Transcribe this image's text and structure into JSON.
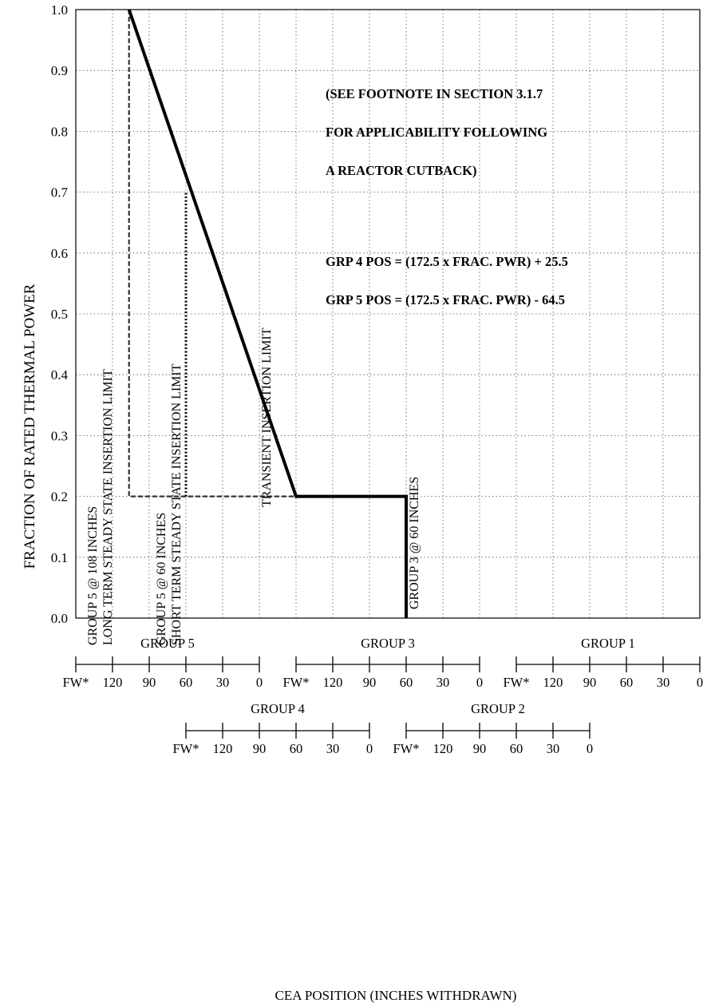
{
  "chart_data": {
    "type": "line",
    "ylabel": "FRACTION OF RATED THERMAL POWER",
    "xlabel": "CEA POSITION (INCHES WITHDRAWN)",
    "ylim": [
      0.0,
      1.0
    ],
    "xlim": [
      0,
      17
    ],
    "grid": true,
    "y_ticks": [
      "0.0",
      "0.1",
      "0.2",
      "0.3",
      "0.4",
      "0.5",
      "0.6",
      "0.7",
      "0.8",
      "0.9",
      "1.0"
    ],
    "annotations": [
      "(SEE FOOTNOTE IN SECTION 3.1.7",
      "FOR APPLICABILITY FOLLOWING",
      "A REACTOR CUTBACK)",
      "GRP 4 POS = (172.5 x FRAC. PWR) + 25.5",
      "GRP 5 POS = (172.5 x FRAC. PWR) - 64.5"
    ],
    "series": [
      {
        "name": "TRANSIENT INSERTION LIMIT",
        "style": "solid",
        "x": [
          1.45,
          6.0,
          9.0,
          9.0
        ],
        "y": [
          1.0,
          0.2,
          0.2,
          0.0
        ]
      },
      {
        "name": "LONG TERM STEADY STATE INSERTION LIMIT",
        "style": "dashed",
        "x": [
          1.45,
          1.45,
          6.0
        ],
        "y": [
          1.0,
          0.2,
          0.2
        ]
      },
      {
        "name": "SHORT TERM STEADY STATE INSERTION LIMIT",
        "style": "dotted",
        "x": [
          3.0,
          3.0
        ],
        "y": [
          0.2,
          0.7
        ]
      }
    ],
    "vertical_labels": [
      {
        "lines": [
          "GROUP 5 @ 108 INCHES",
          "LONG TERM STEADY STATE INSERTION LIMIT"
        ]
      },
      {
        "lines": [
          "GROUP 5 @ 60 INCHES",
          "SHORT TERM STEADY STATE INSERTION LIMIT"
        ]
      },
      {
        "lines": [
          "TRANSIENT INSERTION LIMIT"
        ]
      },
      {
        "lines": [
          "GROUP 3 @ 60 INCHES"
        ]
      }
    ],
    "group_scales": [
      {
        "name": "GROUP 5",
        "ticks": [
          "FW*",
          "120",
          "90",
          "60",
          "30",
          "0"
        ]
      },
      {
        "name": "GROUP 3",
        "ticks": [
          "FW*",
          "120",
          "90",
          "60",
          "30",
          "0"
        ]
      },
      {
        "name": "GROUP 1",
        "ticks": [
          "FW*",
          "120",
          "90",
          "60",
          "30",
          "0"
        ]
      },
      {
        "name": "GROUP 4",
        "ticks": [
          "FW*",
          "120",
          "90",
          "60",
          "30",
          "0"
        ]
      },
      {
        "name": "GROUP 2",
        "ticks": [
          "FW*",
          "120",
          "90",
          "60",
          "30",
          "0"
        ]
      }
    ]
  }
}
